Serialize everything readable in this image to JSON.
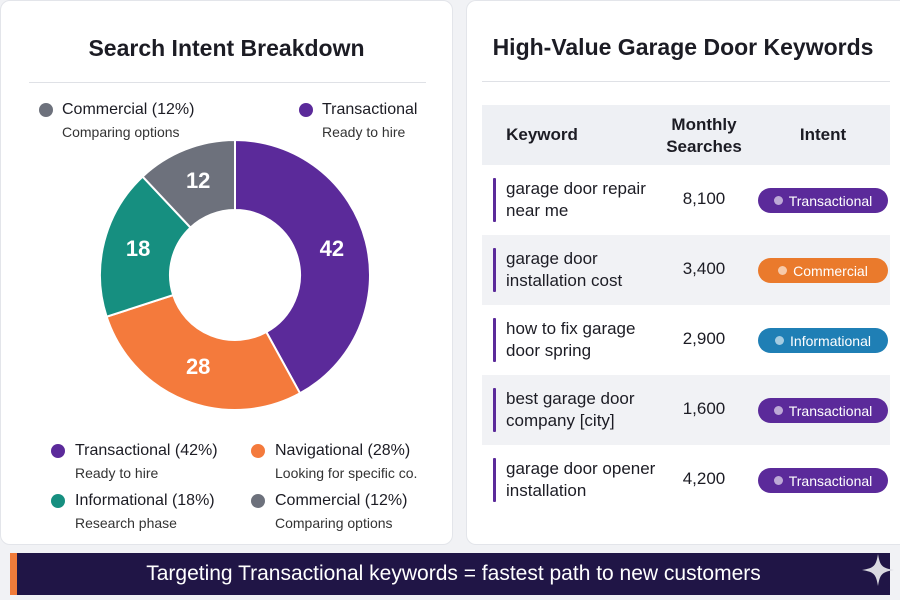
{
  "chart_data": {
    "type": "pie",
    "title": "Search Intent Breakdown",
    "categories": [
      "Transactional (42%)",
      "Navigational (28%)",
      "Informational (18%)",
      "Commercial (12%)"
    ],
    "descriptions": [
      "Ready to hire",
      "Looking for specific co.",
      "Research phase",
      "Comparing options"
    ],
    "values": [
      42,
      28,
      18,
      12
    ],
    "colors": [
      "#5b2a9a",
      "#f47a3c",
      "#168f80",
      "#6d717c"
    ],
    "annotations": [
      {
        "text": "Commercial (12%)",
        "note": "Comparing options",
        "color": "#6d717c"
      },
      {
        "text": "Transactional",
        "note": "Ready to hire",
        "color": "#5b2a9a"
      }
    ]
  },
  "table": {
    "title": "High-Value Garage Door Keywords",
    "header": [
      "Keyword",
      "Monthly Searches",
      "Intent"
    ],
    "rows": [
      {
        "keyword": "garage door repair near me",
        "searches": "8,100",
        "intent": "Transactional",
        "color": "#5b2a9a"
      },
      {
        "keyword": "garage door installation cost",
        "searches": "3,400",
        "intent": "Commercial",
        "color": "#ea7a2c"
      },
      {
        "keyword": "how to fix garage door spring",
        "searches": "2,900",
        "intent": "Informational",
        "color": "#1f7fb5"
      },
      {
        "keyword": "best garage door company [city]",
        "searches": "1,600",
        "intent": "Transactional",
        "color": "#5b2a9a"
      },
      {
        "keyword": "garage door opener installation",
        "searches": "4,200",
        "intent": "Transactional",
        "color": "#5b2a9a"
      }
    ]
  },
  "banner": {
    "text": "Targeting Transactional keywords = fastest path to new customers"
  }
}
